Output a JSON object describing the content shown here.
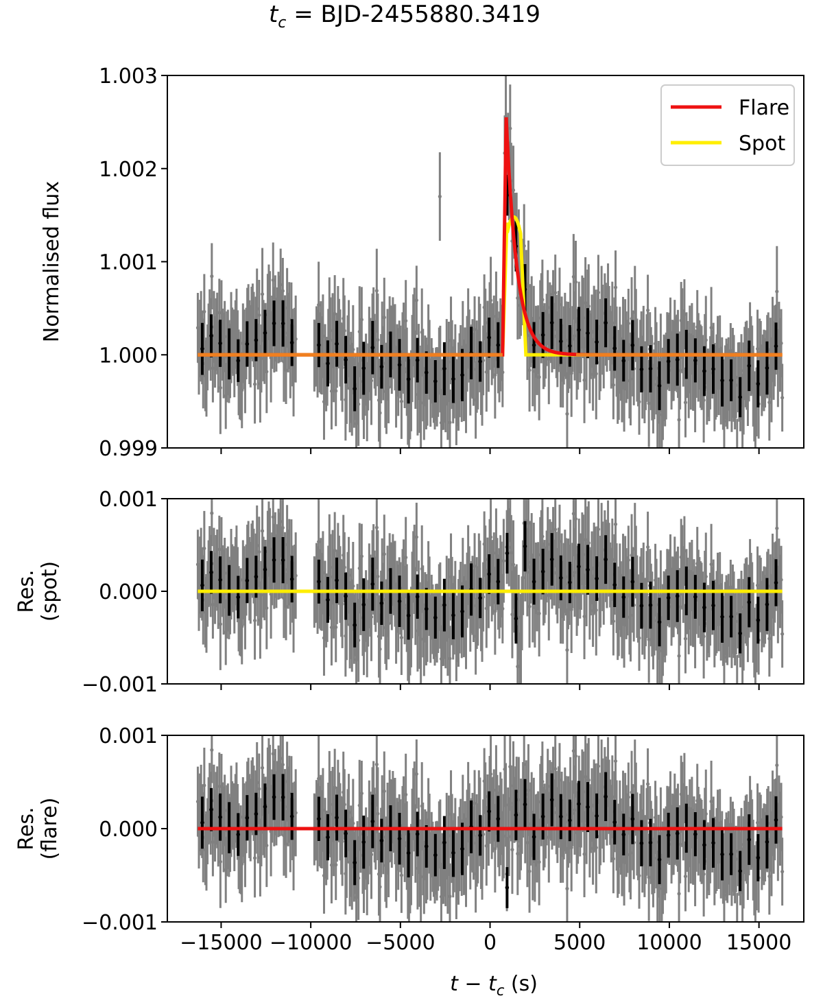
{
  "chart_data": {
    "type": "scatter",
    "title": {
      "prefix": "t",
      "sub": "c",
      "rest": " =  BJD-2455880.3419"
    },
    "xlabel": {
      "t1": "t",
      "mid": " − ",
      "t2": "t",
      "sub": "c",
      "unit": " (s)"
    },
    "xlim": [
      -18000,
      17500
    ],
    "xticks": [
      -15000,
      -10000,
      -5000,
      0,
      5000,
      10000,
      15000
    ],
    "xtick_labels": [
      "−15000",
      "−10000",
      "−5000",
      "0",
      "5000",
      "10000",
      "15000"
    ],
    "colors": {
      "raw": "#808080",
      "binned": "#000000",
      "flare": "#ee1111",
      "spot": "#ffee00",
      "overlap": "#f08020"
    },
    "panels": [
      {
        "id": "flux",
        "ylabel": [
          "Normalised flux"
        ],
        "ylim": [
          0.999,
          1.003
        ],
        "yticks": [
          0.999,
          1.0,
          1.001,
          1.002,
          1.003
        ],
        "ytick_labels": [
          "0.999",
          "1.000",
          "1.001",
          "1.002",
          "1.003"
        ],
        "baseline": 1.0,
        "legend": {
          "loc": "upper right",
          "entries": [
            {
              "label": "Flare",
              "key": "flare"
            },
            {
              "label": "Spot",
              "key": "spot"
            }
          ]
        }
      },
      {
        "id": "res-spot",
        "ylabel": [
          "Res.",
          "(spot)"
        ],
        "ylim": [
          -0.001,
          0.001
        ],
        "yticks": [
          -0.001,
          0.0,
          0.001
        ],
        "ytick_labels": [
          "−0.001",
          "0.000",
          "0.001"
        ],
        "baseline": 0.0,
        "model_line": "spot"
      },
      {
        "id": "res-flare",
        "ylabel": [
          "Res.",
          "(flare)"
        ],
        "ylim": [
          -0.001,
          0.001
        ],
        "yticks": [
          -0.001,
          0.0,
          0.001
        ],
        "ytick_labels": [
          "−0.001",
          "0.000",
          "0.001"
        ],
        "baseline": 0.0,
        "model_line": "flare"
      }
    ],
    "observations": {
      "segments": [
        [
          -16300,
          -10800
        ],
        [
          -9800,
          16300
        ]
      ],
      "cadence_s": 60,
      "binned_cadence_s": 500,
      "raw_error": 0.0005,
      "binned_error": 0.00025
    },
    "models": {
      "flare": {
        "baseline": 1.0,
        "start": 700,
        "peak_time": 900,
        "peak": 1.00255,
        "decay_tau": 600
      },
      "spot": {
        "baseline": 1.0,
        "start": 700,
        "rise_end": 950,
        "fall_start": 1700,
        "fall_end": 2000,
        "peak": 1.00148
      },
      "outliers": [
        {
          "t": -2800,
          "flux": 1.0017
        }
      ]
    }
  }
}
